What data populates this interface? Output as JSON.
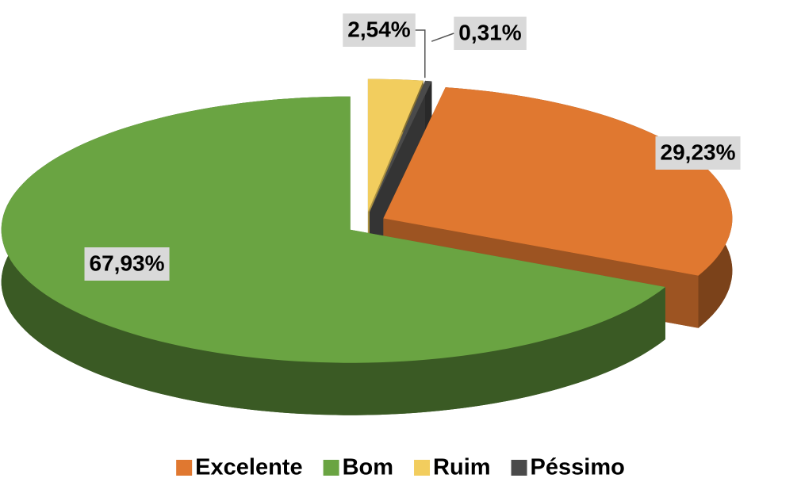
{
  "chart_data": {
    "type": "pie3d",
    "categories": [
      "Excelente",
      "Bom",
      "Ruim",
      "Péssimo"
    ],
    "values": [
      29.23,
      67.93,
      2.54,
      0.31
    ],
    "value_labels": [
      "29,23%",
      "67,93%",
      "2,54%",
      "0,31%"
    ],
    "colors": [
      "#e07830",
      "#6aa442",
      "#f2cd5e",
      "#4a4a4a"
    ],
    "legend": "bottom"
  }
}
